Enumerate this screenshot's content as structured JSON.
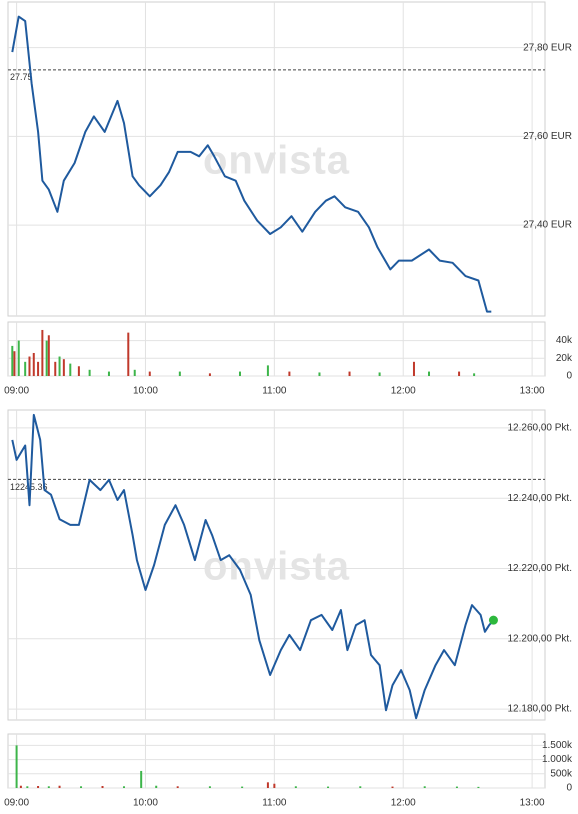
{
  "chart_data": [
    {
      "type": "line",
      "color": "#1f5a9e",
      "watermark": "onvista",
      "xlim": [
        "08:56",
        "13:06"
      ],
      "xticks": [
        "09:00",
        "10:00",
        "11:00",
        "12:00",
        "13:00"
      ],
      "ylim": [
        27.195,
        27.903
      ],
      "yticks": [
        {
          "value": 27.8,
          "label": "27,80 EUR"
        },
        {
          "value": 27.6,
          "label": "27,60 EUR"
        },
        {
          "value": 27.4,
          "label": "27,40 EUR"
        }
      ],
      "reference": 27.75,
      "x": [
        "08:58",
        "09:01",
        "09:04",
        "09:07",
        "09:10",
        "09:12",
        "09:15",
        "09:19",
        "09:22",
        "09:27",
        "09:32",
        "09:36",
        "09:41",
        "09:47",
        "09:50",
        "09:54",
        "09:57",
        "10:02",
        "10:07",
        "10:11",
        "10:15",
        "10:21",
        "10:25",
        "10:29",
        "10:32",
        "10:37",
        "10:42",
        "10:46",
        "10:52",
        "10:58",
        "11:03",
        "11:08",
        "11:13",
        "11:19",
        "11:24",
        "11:28",
        "11:33",
        "11:39",
        "11:44",
        "11:48",
        "11:54",
        "11:58",
        "12:04",
        "12:12",
        "12:17",
        "12:23",
        "12:29",
        "12:35",
        "12:39",
        "12:41"
      ],
      "values": [
        27.79,
        27.87,
        27.86,
        27.72,
        27.61,
        27.5,
        27.48,
        27.43,
        27.5,
        27.54,
        27.61,
        27.645,
        27.61,
        27.68,
        27.63,
        27.51,
        27.49,
        27.465,
        27.49,
        27.52,
        27.565,
        27.565,
        27.555,
        27.58,
        27.555,
        27.51,
        27.5,
        27.455,
        27.41,
        27.38,
        27.395,
        27.42,
        27.385,
        27.43,
        27.455,
        27.465,
        27.44,
        27.43,
        27.395,
        27.35,
        27.3,
        27.32,
        27.32,
        27.345,
        27.32,
        27.315,
        27.285,
        27.275,
        27.205,
        27.205
      ],
      "volume": {
        "type": "bar",
        "ylim": [
          0,
          61000
        ],
        "yticks": [
          {
            "value": 40000,
            "label": "40k"
          },
          {
            "value": 20000,
            "label": "20k"
          },
          0
        ],
        "x": [
          "08:58",
          "08:59",
          "09:01",
          "09:04",
          "09:06",
          "09:08",
          "09:10",
          "09:12",
          "09:14",
          "09:15",
          "09:18",
          "09:20",
          "09:22",
          "09:25",
          "09:29",
          "09:34",
          "09:43",
          "09:52",
          "09:55",
          "10:02",
          "10:16",
          "10:30",
          "10:44",
          "10:57",
          "11:07",
          "11:21",
          "11:35",
          "11:49",
          "12:05",
          "12:12",
          "12:26",
          "12:33"
        ],
        "values": [
          34000,
          28000,
          40000,
          16000,
          22000,
          26000,
          16000,
          52000,
          40000,
          46000,
          16000,
          22000,
          19000,
          14000,
          11000,
          7000,
          5000,
          49000,
          7000,
          5000,
          5000,
          3000,
          5000,
          12000,
          5000,
          4000,
          5000,
          4000,
          16000,
          5000,
          5000,
          3000
        ],
        "colors": [
          "#3db54a",
          "#c0392b",
          "#3db54a",
          "#3db54a",
          "#c0392b",
          "#c0392b",
          "#c0392b",
          "#c0392b",
          "#3db54a",
          "#c0392b",
          "#c0392b",
          "#3db54a",
          "#c0392b",
          "#3db54a",
          "#c0392b",
          "#3db54a",
          "#3db54a",
          "#c0392b",
          "#3db54a",
          "#c0392b",
          "#3db54a",
          "#c0392b",
          "#3db54a",
          "#3db54a",
          "#c0392b",
          "#3db54a",
          "#c0392b",
          "#3db54a",
          "#c0392b",
          "#3db54a",
          "#c0392b",
          "#3db54a"
        ]
      }
    },
    {
      "type": "line",
      "color": "#1f5a9e",
      "watermark": "onvista",
      "end_marker_color": "#2db83d",
      "xlim": [
        "08:56",
        "13:06"
      ],
      "xticks": [
        "09:00",
        "10:00",
        "11:00",
        "12:00",
        "13:00"
      ],
      "ylim": [
        12176.9,
        12265.1
      ],
      "yticks": [
        {
          "value": 12260,
          "label": "12.260,00 Pkt."
        },
        {
          "value": 12240,
          "label": "12.240,00 Pkt."
        },
        {
          "value": 12220,
          "label": "12.220,00 Pkt."
        },
        {
          "value": 12200,
          "label": "12.200,00 Pkt."
        },
        {
          "value": 12180,
          "label": "12.180,00 Pkt."
        }
      ],
      "reference": 12245.36,
      "x": [
        "08:58",
        "09:00",
        "09:04",
        "09:06",
        "09:08",
        "09:11",
        "09:13",
        "09:16",
        "09:20",
        "09:25",
        "09:29",
        "09:34",
        "09:39",
        "09:43",
        "09:47",
        "09:50",
        "09:54",
        "09:56",
        "10:00",
        "10:04",
        "10:09",
        "10:14",
        "10:18",
        "10:23",
        "10:28",
        "10:31",
        "10:35",
        "10:39",
        "10:44",
        "10:49",
        "10:53",
        "10:58",
        "11:03",
        "11:07",
        "11:12",
        "11:17",
        "11:22",
        "11:27",
        "11:31",
        "11:34",
        "11:38",
        "11:42",
        "11:45",
        "11:49",
        "11:52",
        "11:55",
        "11:59",
        "12:03",
        "12:06",
        "12:10",
        "12:15",
        "12:19",
        "12:24",
        "12:29",
        "12:32",
        "12:36",
        "12:38",
        "12:40",
        "12:42"
      ],
      "values": [
        12256.6,
        12250.9,
        12255,
        12238,
        12263.7,
        12256.6,
        12242.3,
        12241,
        12234,
        12232.4,
        12232.4,
        12245.2,
        12242.3,
        12245.2,
        12239.5,
        12242.3,
        12229.5,
        12222.4,
        12213.9,
        12221,
        12232.4,
        12238,
        12232.4,
        12222.4,
        12233.8,
        12229.5,
        12222.4,
        12223.8,
        12219.6,
        12212.5,
        12199.6,
        12189.7,
        12196.8,
        12201.1,
        12196.8,
        12205.3,
        12206.8,
        12202.5,
        12208.2,
        12196.8,
        12203.9,
        12205.3,
        12195.4,
        12192.5,
        12179.7,
        12186.8,
        12191.1,
        12185.4,
        12177.4,
        12185.4,
        12192.5,
        12196.8,
        12192.5,
        12203.9,
        12209.6,
        12206.8,
        12202,
        12203.9,
        12205.3
      ],
      "volume": {
        "type": "bar",
        "ylim": [
          0,
          1900000
        ],
        "yticks": [
          {
            "value": 1500000,
            "label": "1.500k"
          },
          {
            "value": 1000000,
            "label": "1.000k"
          },
          {
            "value": 500000,
            "label": "500k"
          },
          0
        ],
        "x": [
          "09:00",
          "09:02",
          "09:05",
          "09:10",
          "09:15",
          "09:20",
          "09:30",
          "09:40",
          "09:50",
          "09:58",
          "10:05",
          "10:15",
          "10:30",
          "10:45",
          "10:57",
          "11:00",
          "11:10",
          "11:25",
          "11:40",
          "11:55",
          "12:10",
          "12:25",
          "12:35"
        ],
        "values": [
          1500000,
          80000,
          60000,
          70000,
          60000,
          80000,
          60000,
          70000,
          60000,
          600000,
          80000,
          60000,
          60000,
          50000,
          200000,
          150000,
          60000,
          50000,
          60000,
          50000,
          60000,
          50000,
          40000
        ],
        "colors": [
          "#3db54a",
          "#c0392b",
          "#3db54a",
          "#c0392b",
          "#3db54a",
          "#c0392b",
          "#3db54a",
          "#c0392b",
          "#3db54a",
          "#3db54a",
          "#3db54a",
          "#c0392b",
          "#3db54a",
          "#3db54a",
          "#c0392b",
          "#c0392b",
          "#3db54a",
          "#3db54a",
          "#3db54a",
          "#c0392b",
          "#3db54a",
          "#3db54a",
          "#3db54a"
        ]
      }
    }
  ]
}
